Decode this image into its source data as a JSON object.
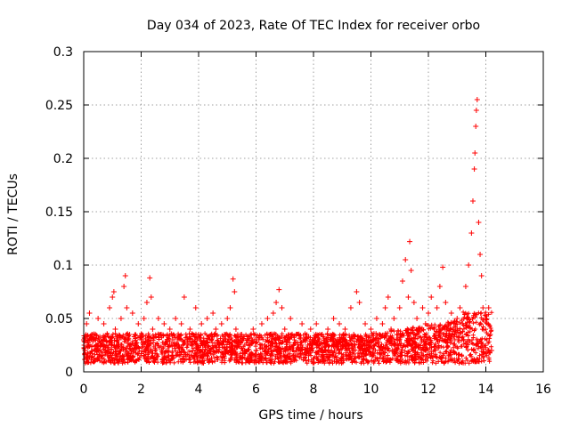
{
  "chart_data": {
    "type": "scatter",
    "title": "Day 034 of 2023, Rate Of TEC Index for receiver orbo",
    "xlabel": "GPS time / hours",
    "ylabel": "ROTI / TECUs",
    "xlim": [
      0,
      16
    ],
    "ylim": [
      0,
      0.3
    ],
    "x_ticks": [
      "0",
      "2",
      "4",
      "6",
      "8",
      "10",
      "12",
      "14",
      "16"
    ],
    "y_ticks": [
      "0",
      "0.05",
      "0.1",
      "0.15",
      "0.2",
      "0.25",
      "0.3"
    ],
    "grid": true,
    "marker": "+",
    "color": "#ff0000",
    "series": [
      {
        "points": [
          [
            0.0,
            0.03
          ],
          [
            0.05,
            0.02
          ],
          [
            0.1,
            0.045
          ],
          [
            0.15,
            0.025
          ],
          [
            0.2,
            0.055
          ],
          [
            0.3,
            0.035
          ],
          [
            0.4,
            0.02
          ],
          [
            0.5,
            0.05
          ],
          [
            0.6,
            0.03
          ],
          [
            0.7,
            0.045
          ],
          [
            0.8,
            0.025
          ],
          [
            0.9,
            0.06
          ],
          [
            1.0,
            0.07
          ],
          [
            1.05,
            0.075
          ],
          [
            1.1,
            0.04
          ],
          [
            1.2,
            0.03
          ],
          [
            1.3,
            0.05
          ],
          [
            1.4,
            0.08
          ],
          [
            1.45,
            0.09
          ],
          [
            1.5,
            0.06
          ],
          [
            1.6,
            0.035
          ],
          [
            1.7,
            0.055
          ],
          [
            1.8,
            0.025
          ],
          [
            1.9,
            0.045
          ],
          [
            2.0,
            0.03
          ],
          [
            2.1,
            0.05
          ],
          [
            2.2,
            0.065
          ],
          [
            2.3,
            0.088
          ],
          [
            2.35,
            0.07
          ],
          [
            2.4,
            0.04
          ],
          [
            2.5,
            0.025
          ],
          [
            2.6,
            0.05
          ],
          [
            2.7,
            0.035
          ],
          [
            2.8,
            0.045
          ],
          [
            2.9,
            0.02
          ],
          [
            3.0,
            0.04
          ],
          [
            3.1,
            0.03
          ],
          [
            3.2,
            0.05
          ],
          [
            3.3,
            0.025
          ],
          [
            3.4,
            0.045
          ],
          [
            3.5,
            0.07
          ],
          [
            3.6,
            0.03
          ],
          [
            3.7,
            0.04
          ],
          [
            3.8,
            0.02
          ],
          [
            3.9,
            0.06
          ],
          [
            4.0,
            0.035
          ],
          [
            4.1,
            0.045
          ],
          [
            4.2,
            0.025
          ],
          [
            4.3,
            0.05
          ],
          [
            4.4,
            0.03
          ],
          [
            4.5,
            0.055
          ],
          [
            4.6,
            0.04
          ],
          [
            4.7,
            0.025
          ],
          [
            4.8,
            0.045
          ],
          [
            4.9,
            0.035
          ],
          [
            5.0,
            0.05
          ],
          [
            5.1,
            0.06
          ],
          [
            5.2,
            0.087
          ],
          [
            5.25,
            0.075
          ],
          [
            5.3,
            0.04
          ],
          [
            5.4,
            0.025
          ],
          [
            5.5,
            0.035
          ],
          [
            5.6,
            0.02
          ],
          [
            5.7,
            0.03
          ],
          [
            5.8,
            0.025
          ],
          [
            5.9,
            0.04
          ],
          [
            6.0,
            0.02
          ],
          [
            6.1,
            0.03
          ],
          [
            6.2,
            0.045
          ],
          [
            6.3,
            0.025
          ],
          [
            6.4,
            0.05
          ],
          [
            6.5,
            0.035
          ],
          [
            6.6,
            0.055
          ],
          [
            6.7,
            0.065
          ],
          [
            6.8,
            0.077
          ],
          [
            6.9,
            0.06
          ],
          [
            7.0,
            0.04
          ],
          [
            7.1,
            0.03
          ],
          [
            7.2,
            0.05
          ],
          [
            7.3,
            0.025
          ],
          [
            7.4,
            0.035
          ],
          [
            7.5,
            0.02
          ],
          [
            7.6,
            0.045
          ],
          [
            7.7,
            0.03
          ],
          [
            7.8,
            0.025
          ],
          [
            7.9,
            0.04
          ],
          [
            8.0,
            0.03
          ],
          [
            8.1,
            0.045
          ],
          [
            8.2,
            0.025
          ],
          [
            8.3,
            0.035
          ],
          [
            8.4,
            0.02
          ],
          [
            8.5,
            0.04
          ],
          [
            8.6,
            0.03
          ],
          [
            8.7,
            0.05
          ],
          [
            8.8,
            0.025
          ],
          [
            8.9,
            0.045
          ],
          [
            9.0,
            0.03
          ],
          [
            9.1,
            0.04
          ],
          [
            9.2,
            0.025
          ],
          [
            9.3,
            0.06
          ],
          [
            9.4,
            0.035
          ],
          [
            9.5,
            0.075
          ],
          [
            9.6,
            0.065
          ],
          [
            9.7,
            0.03
          ],
          [
            9.8,
            0.045
          ],
          [
            9.9,
            0.025
          ],
          [
            10.0,
            0.04
          ],
          [
            10.1,
            0.03
          ],
          [
            10.2,
            0.05
          ],
          [
            10.3,
            0.035
          ],
          [
            10.4,
            0.045
          ],
          [
            10.5,
            0.06
          ],
          [
            10.6,
            0.07
          ],
          [
            10.7,
            0.04
          ],
          [
            10.8,
            0.05
          ],
          [
            10.9,
            0.035
          ],
          [
            11.0,
            0.06
          ],
          [
            11.1,
            0.085
          ],
          [
            11.2,
            0.105
          ],
          [
            11.3,
            0.07
          ],
          [
            11.35,
            0.122
          ],
          [
            11.4,
            0.095
          ],
          [
            11.5,
            0.065
          ],
          [
            11.6,
            0.05
          ],
          [
            11.7,
            0.04
          ],
          [
            11.8,
            0.06
          ],
          [
            11.9,
            0.045
          ],
          [
            12.0,
            0.055
          ],
          [
            12.1,
            0.07
          ],
          [
            12.2,
            0.04
          ],
          [
            12.3,
            0.06
          ],
          [
            12.4,
            0.08
          ],
          [
            12.5,
            0.098
          ],
          [
            12.6,
            0.065
          ],
          [
            12.7,
            0.045
          ],
          [
            12.8,
            0.055
          ],
          [
            12.9,
            0.035
          ],
          [
            13.0,
            0.05
          ],
          [
            13.1,
            0.06
          ],
          [
            13.2,
            0.045
          ],
          [
            13.3,
            0.08
          ],
          [
            13.4,
            0.1
          ],
          [
            13.5,
            0.13
          ],
          [
            13.55,
            0.16
          ],
          [
            13.6,
            0.19
          ],
          [
            13.62,
            0.205
          ],
          [
            13.65,
            0.23
          ],
          [
            13.67,
            0.245
          ],
          [
            13.7,
            0.255
          ],
          [
            13.75,
            0.14
          ],
          [
            13.8,
            0.11
          ],
          [
            13.85,
            0.09
          ],
          [
            13.9,
            0.06
          ],
          [
            14.0,
            0.05
          ],
          [
            14.1,
            0.06
          ],
          [
            14.15,
            0.035
          ],
          [
            14.2,
            0.02
          ]
        ]
      }
    ]
  }
}
